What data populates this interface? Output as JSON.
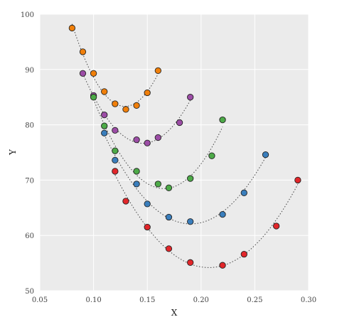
{
  "chart_data": {
    "type": "scatter",
    "xlabel": "X",
    "ylabel": "Y",
    "xlim": [
      0.05,
      0.3
    ],
    "ylim": [
      50,
      100
    ],
    "xticks": [
      "0.05",
      "0.10",
      "0.15",
      "0.20",
      "0.25",
      "0.30"
    ],
    "yticks": [
      "50",
      "60",
      "70",
      "80",
      "90",
      "100"
    ],
    "grid": true,
    "background": "#EBEBEB",
    "series": [
      {
        "color": "#F07F0A",
        "points": [
          [
            0.08,
            97.5
          ],
          [
            0.09,
            93.2
          ],
          [
            0.1,
            89.3
          ],
          [
            0.11,
            86.0
          ],
          [
            0.12,
            83.8
          ],
          [
            0.13,
            82.8
          ],
          [
            0.14,
            83.5
          ],
          [
            0.15,
            85.8
          ],
          [
            0.16,
            89.8
          ]
        ],
        "fit": [
          0.08,
          0.16
        ]
      },
      {
        "color": "#9C4DA6",
        "points": [
          [
            0.09,
            89.3
          ],
          [
            0.1,
            85.3
          ],
          [
            0.11,
            81.8
          ],
          [
            0.12,
            79.0
          ],
          [
            0.14,
            77.3
          ],
          [
            0.15,
            76.7
          ],
          [
            0.16,
            77.7
          ],
          [
            0.18,
            80.4
          ],
          [
            0.19,
            85.0
          ]
        ],
        "fit": [
          0.09,
          0.19
        ]
      },
      {
        "color": "#4DAA48",
        "points": [
          [
            0.1,
            85.0
          ],
          [
            0.11,
            79.8
          ],
          [
            0.12,
            75.3
          ],
          [
            0.14,
            71.6
          ],
          [
            0.16,
            69.3
          ],
          [
            0.17,
            68.6
          ],
          [
            0.19,
            70.3
          ],
          [
            0.21,
            74.4
          ],
          [
            0.22,
            80.9
          ]
        ],
        "fit": [
          0.1,
          0.22
        ]
      },
      {
        "color": "#3A7EBC",
        "points": [
          [
            0.11,
            78.5
          ],
          [
            0.12,
            73.6
          ],
          [
            0.14,
            69.3
          ],
          [
            0.15,
            65.7
          ],
          [
            0.17,
            63.3
          ],
          [
            0.19,
            62.5
          ],
          [
            0.22,
            63.8
          ],
          [
            0.24,
            67.7
          ],
          [
            0.26,
            74.6
          ]
        ],
        "fit": [
          0.11,
          0.26
        ]
      },
      {
        "color": "#E2262A",
        "points": [
          [
            0.12,
            71.6
          ],
          [
            0.13,
            66.2
          ],
          [
            0.15,
            61.5
          ],
          [
            0.17,
            57.6
          ],
          [
            0.19,
            55.1
          ],
          [
            0.22,
            54.6
          ],
          [
            0.24,
            56.6
          ],
          [
            0.27,
            61.7
          ],
          [
            0.29,
            70.0
          ]
        ],
        "fit": [
          0.12,
          0.29
        ]
      }
    ]
  }
}
